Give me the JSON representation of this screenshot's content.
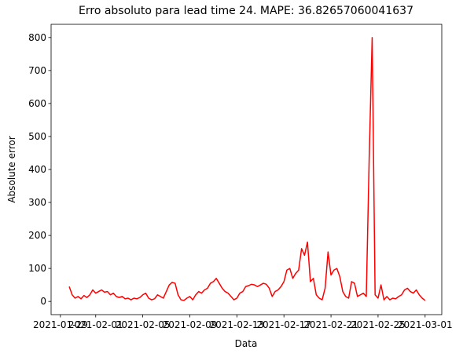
{
  "chart_data": {
    "type": "line",
    "title": "Erro absoluto para lead time 24. MAPE: 36.82657060041637",
    "xlabel": "Data",
    "ylabel": "Absolute error",
    "xlim": [
      "2021-01-28 05:00",
      "2021-03-02 10:00"
    ],
    "xticks": [
      "2021-01-29",
      "2021-02-01",
      "2021-02-05",
      "2021-02-09",
      "2021-02-13",
      "2021-02-17",
      "2021-02-21",
      "2021-02-25",
      "2021-03-01"
    ],
    "ylim": [
      -40,
      840
    ],
    "yticks": [
      0,
      100,
      200,
      300,
      400,
      500,
      600,
      700,
      800
    ],
    "grid": false,
    "x": [
      "2021-01-29 18:00",
      "2021-01-30 00:00",
      "2021-01-30 06:00",
      "2021-01-30 12:00",
      "2021-01-30 18:00",
      "2021-01-31 00:00",
      "2021-01-31 06:00",
      "2021-01-31 12:00",
      "2021-01-31 18:00",
      "2021-02-01 00:00",
      "2021-02-01 06:00",
      "2021-02-01 12:00",
      "2021-02-01 18:00",
      "2021-02-02 00:00",
      "2021-02-02 06:00",
      "2021-02-02 12:00",
      "2021-02-02 18:00",
      "2021-02-03 00:00",
      "2021-02-03 06:00",
      "2021-02-03 12:00",
      "2021-02-03 18:00",
      "2021-02-04 00:00",
      "2021-02-04 06:00",
      "2021-02-04 12:00",
      "2021-02-04 18:00",
      "2021-02-05 00:00",
      "2021-02-05 06:00",
      "2021-02-05 12:00",
      "2021-02-05 18:00",
      "2021-02-06 00:00",
      "2021-02-06 06:00",
      "2021-02-06 12:00",
      "2021-02-06 18:00",
      "2021-02-07 00:00",
      "2021-02-07 06:00",
      "2021-02-07 12:00",
      "2021-02-07 18:00",
      "2021-02-08 00:00",
      "2021-02-08 06:00",
      "2021-02-08 12:00",
      "2021-02-08 18:00",
      "2021-02-09 00:00",
      "2021-02-09 06:00",
      "2021-02-09 12:00",
      "2021-02-09 18:00",
      "2021-02-10 00:00",
      "2021-02-10 06:00",
      "2021-02-10 12:00",
      "2021-02-10 18:00",
      "2021-02-11 00:00",
      "2021-02-11 06:00",
      "2021-02-11 12:00",
      "2021-02-11 18:00",
      "2021-02-12 00:00",
      "2021-02-12 06:00",
      "2021-02-12 12:00",
      "2021-02-12 18:00",
      "2021-02-13 00:00",
      "2021-02-13 06:00",
      "2021-02-13 12:00",
      "2021-02-13 18:00",
      "2021-02-14 00:00",
      "2021-02-14 06:00",
      "2021-02-14 12:00",
      "2021-02-14 18:00",
      "2021-02-15 00:00",
      "2021-02-15 06:00",
      "2021-02-15 12:00",
      "2021-02-15 18:00",
      "2021-02-16 00:00",
      "2021-02-16 06:00",
      "2021-02-16 12:00",
      "2021-02-16 18:00",
      "2021-02-17 00:00",
      "2021-02-17 06:00",
      "2021-02-17 12:00",
      "2021-02-17 18:00",
      "2021-02-18 00:00",
      "2021-02-18 06:00",
      "2021-02-18 12:00",
      "2021-02-18 18:00",
      "2021-02-19 00:00",
      "2021-02-19 06:00",
      "2021-02-19 12:00",
      "2021-02-19 18:00",
      "2021-02-20 00:00",
      "2021-02-20 06:00",
      "2021-02-20 12:00",
      "2021-02-20 18:00",
      "2021-02-21 00:00",
      "2021-02-21 06:00",
      "2021-02-21 12:00",
      "2021-02-21 18:00",
      "2021-02-22 00:00",
      "2021-02-22 06:00",
      "2021-02-22 12:00",
      "2021-02-22 18:00",
      "2021-02-23 00:00",
      "2021-02-23 06:00",
      "2021-02-23 12:00",
      "2021-02-23 18:00",
      "2021-02-24 00:00",
      "2021-02-24 06:00",
      "2021-02-24 12:00",
      "2021-02-24 18:00",
      "2021-02-25 00:00",
      "2021-02-25 06:00",
      "2021-02-25 12:00",
      "2021-02-25 18:00",
      "2021-02-26 00:00",
      "2021-02-26 06:00",
      "2021-02-26 12:00",
      "2021-02-26 18:00",
      "2021-02-27 00:00",
      "2021-02-27 06:00",
      "2021-02-27 12:00",
      "2021-02-27 18:00",
      "2021-02-28 00:00",
      "2021-02-28 06:00",
      "2021-02-28 12:00",
      "2021-02-28 18:00",
      "2021-03-01 00:00"
    ],
    "series": [
      {
        "color": "#ff0000",
        "values": [
          45,
          20,
          10,
          15,
          8,
          18,
          12,
          20,
          35,
          25,
          30,
          35,
          28,
          30,
          20,
          25,
          15,
          12,
          15,
          8,
          10,
          5,
          10,
          8,
          12,
          20,
          25,
          10,
          5,
          8,
          20,
          15,
          10,
          30,
          50,
          58,
          55,
          20,
          5,
          3,
          10,
          15,
          5,
          20,
          30,
          25,
          35,
          40,
          55,
          60,
          70,
          55,
          40,
          30,
          25,
          15,
          5,
          10,
          25,
          30,
          45,
          48,
          52,
          50,
          45,
          50,
          55,
          52,
          40,
          15,
          30,
          35,
          45,
          60,
          95,
          100,
          70,
          85,
          95,
          160,
          140,
          180,
          60,
          70,
          20,
          10,
          5,
          40,
          150,
          80,
          95,
          100,
          75,
          30,
          15,
          10,
          60,
          55,
          15,
          20,
          25,
          15,
          440,
          800,
          20,
          10,
          50,
          5,
          15,
          5,
          10,
          8,
          15,
          20,
          35,
          40,
          30,
          25,
          35,
          20,
          10,
          3
        ]
      }
    ]
  }
}
